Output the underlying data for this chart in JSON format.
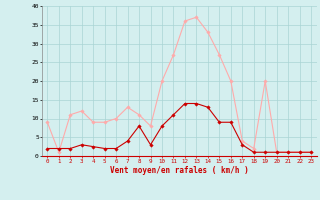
{
  "hours": [
    0,
    1,
    2,
    3,
    4,
    5,
    6,
    7,
    8,
    9,
    10,
    11,
    12,
    13,
    14,
    15,
    16,
    17,
    18,
    19,
    20,
    21,
    22,
    23
  ],
  "mean_wind": [
    2,
    2,
    2,
    3,
    2.5,
    2,
    2,
    4,
    8,
    3,
    8,
    11,
    14,
    14,
    13,
    9,
    9,
    3,
    1,
    1,
    1,
    1,
    1,
    1
  ],
  "gusts": [
    9,
    1,
    11,
    12,
    9,
    9,
    10,
    13,
    11,
    8,
    20,
    27,
    36,
    37,
    33,
    27,
    20,
    4,
    2,
    20,
    1,
    1,
    1,
    1
  ],
  "mean_color": "#cc0000",
  "gust_color": "#ffaaaa",
  "bg_color": "#d4efef",
  "grid_color": "#aad4d4",
  "xlabel": "Vent moyen/en rafales ( km/h )",
  "xlabel_color": "#cc0000",
  "ylim": [
    0,
    40
  ],
  "yticks": [
    0,
    5,
    10,
    15,
    20,
    25,
    30,
    35,
    40
  ],
  "marker": "D",
  "markersize": 1.8,
  "linewidth": 0.8
}
